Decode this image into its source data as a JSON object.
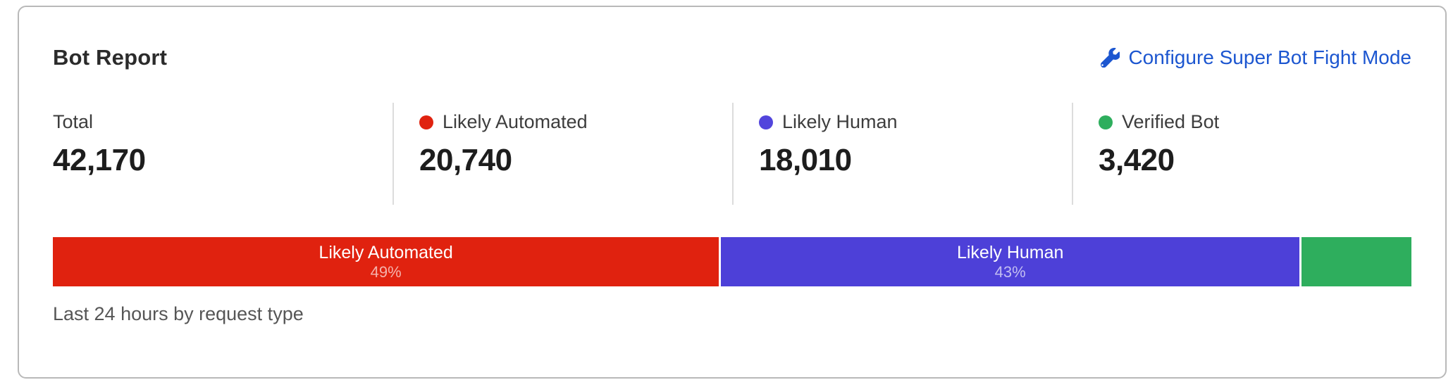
{
  "card": {
    "title": "Bot Report",
    "configure_link": {
      "label": "Configure Super Bot Fight Mode",
      "icon": "wrench-icon"
    },
    "caption": "Last 24 hours by request type"
  },
  "stats": [
    {
      "label": "Total",
      "value": "42,170",
      "color": null
    },
    {
      "label": "Likely Automated",
      "value": "20,740",
      "color": "#e0220f"
    },
    {
      "label": "Likely Human",
      "value": "18,010",
      "color": "#5245dc"
    },
    {
      "label": "Verified Bot",
      "value": "3,420",
      "color": "#2eae5d"
    }
  ],
  "chart_data": {
    "type": "bar",
    "variant": "stacked-horizontal",
    "title": "Bot Report",
    "caption": "Last 24 hours by request type",
    "total": 42170,
    "categories": [
      "Likely Automated",
      "Likely Human",
      "Verified Bot"
    ],
    "values": [
      20740,
      18010,
      3420
    ],
    "segments": [
      {
        "label": "Likely Automated",
        "value": 20740,
        "percent": 49.18,
        "percent_label": "49%",
        "color": "#e0220f"
      },
      {
        "label": "Likely Human",
        "value": 18010,
        "percent": 42.71,
        "percent_label": "43%",
        "color": "#4d40d8"
      },
      {
        "label": "",
        "value": 3420,
        "percent": 8.11,
        "percent_label": "",
        "color": "#2eae5d"
      }
    ]
  },
  "colors": {
    "link_blue": "#1c56d0",
    "card_border": "#b9b9b9",
    "divider": "#dcdcdc"
  }
}
